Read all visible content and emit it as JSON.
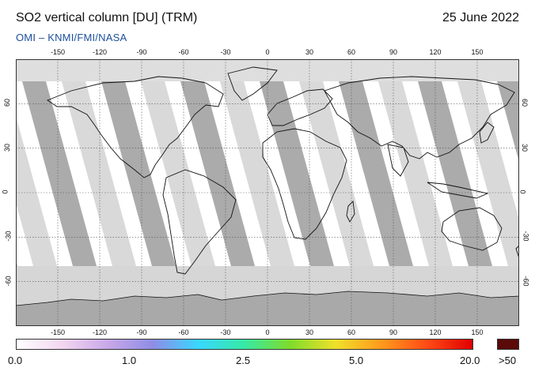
{
  "header": {
    "title": "SO2 vertical column [DU] (TRM)",
    "source": "OMI  –  KNMI/FMI/NASA",
    "date": "25 June 2022"
  },
  "map": {
    "lon_ticks": [
      "-150",
      "-120",
      "-90",
      "-60",
      "-30",
      "0",
      "30",
      "60",
      "90",
      "120",
      "150"
    ],
    "lat_ticks": [
      "60",
      "30",
      "0",
      "-30",
      "-60"
    ],
    "lon_range": [
      -180,
      180
    ],
    "lat_range": [
      -90,
      90
    ],
    "gridlines": true,
    "colors": {
      "swath_light": "#d9d9d9",
      "swath_dark": "#ababab",
      "land_outline": "#111111",
      "grid": "#555555"
    }
  },
  "colorbar": {
    "labels": [
      "0.0",
      "1.0",
      "2.5",
      "5.0",
      "20.0"
    ],
    "over_label": ">50",
    "over_color": "#5a0a08",
    "stops": [
      "#ffffff",
      "#f3d6f1",
      "#c9a8e8",
      "#8e8de6",
      "#38d8ff",
      "#36e9a4",
      "#7fdc2b",
      "#f0e02a",
      "#ff9a1c",
      "#ff4b16",
      "#e00000"
    ]
  }
}
